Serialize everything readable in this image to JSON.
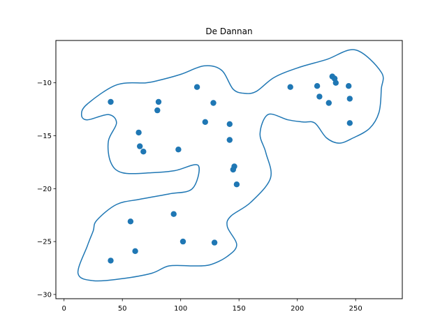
{
  "chart_data": {
    "type": "scatter",
    "title": "De Dannan",
    "xlabel": "",
    "ylabel": "",
    "xlim": [
      -7,
      290
    ],
    "ylim": [
      -30.4,
      -6.0
    ],
    "xticks": [
      0,
      50,
      100,
      150,
      200,
      250
    ],
    "yticks": [
      -30,
      -25,
      -20,
      -15,
      -10
    ],
    "grid": false,
    "legend": "none",
    "series": [
      {
        "points": [
          [
            40,
            -11.8
          ],
          [
            81,
            -11.8
          ],
          [
            80,
            -12.6
          ],
          [
            64,
            -14.7
          ],
          [
            65,
            -16.0
          ],
          [
            68,
            -16.5
          ],
          [
            98,
            -16.3
          ],
          [
            114,
            -10.4
          ],
          [
            128,
            -11.9
          ],
          [
            121,
            -13.7
          ],
          [
            142,
            -13.9
          ],
          [
            142,
            -15.4
          ],
          [
            146,
            -17.9
          ],
          [
            145,
            -18.2
          ],
          [
            148,
            -19.6
          ],
          [
            194,
            -10.4
          ],
          [
            217,
            -10.3
          ],
          [
            219,
            -11.3
          ],
          [
            227,
            -11.9
          ],
          [
            230,
            -9.4
          ],
          [
            232,
            -9.6
          ],
          [
            233,
            -10.0
          ],
          [
            244,
            -10.3
          ],
          [
            245,
            -11.5
          ],
          [
            245,
            -13.8
          ],
          [
            57,
            -23.1
          ],
          [
            94,
            -22.4
          ],
          [
            102,
            -25.0
          ],
          [
            129,
            -25.1
          ],
          [
            61,
            -25.9
          ],
          [
            40,
            -26.8
          ]
        ]
      }
    ],
    "outline": [
      [
        20,
        -12.0
      ],
      [
        45,
        -10.2
      ],
      [
        70,
        -10.0
      ],
      [
        80,
        -9.8
      ],
      [
        100,
        -9.2
      ],
      [
        120,
        -8.4
      ],
      [
        135,
        -8.8
      ],
      [
        145,
        -10.6
      ],
      [
        155,
        -11.0
      ],
      [
        165,
        -10.8
      ],
      [
        180,
        -9.5
      ],
      [
        200,
        -8.6
      ],
      [
        225,
        -7.8
      ],
      [
        250,
        -6.9
      ],
      [
        272,
        -9.0
      ],
      [
        272,
        -10.6
      ],
      [
        270,
        -12.8
      ],
      [
        262,
        -14.3
      ],
      [
        248,
        -15.2
      ],
      [
        236,
        -15.7
      ],
      [
        225,
        -15.2
      ],
      [
        215,
        -13.8
      ],
      [
        205,
        -13.7
      ],
      [
        192,
        -13.5
      ],
      [
        175,
        -13.0
      ],
      [
        168,
        -14.8
      ],
      [
        173,
        -16.6
      ],
      [
        177,
        -19.0
      ],
      [
        160,
        -21.3
      ],
      [
        143,
        -22.6
      ],
      [
        140,
        -23.6
      ],
      [
        148,
        -25.3
      ],
      [
        140,
        -26.4
      ],
      [
        125,
        -27.2
      ],
      [
        110,
        -27.3
      ],
      [
        90,
        -27.3
      ],
      [
        75,
        -28.0
      ],
      [
        50,
        -28.5
      ],
      [
        25,
        -28.7
      ],
      [
        12,
        -28.0
      ],
      [
        20,
        -25.4
      ],
      [
        25,
        -24.0
      ],
      [
        28,
        -23.0
      ],
      [
        45,
        -21.5
      ],
      [
        65,
        -21.0
      ],
      [
        90,
        -20.5
      ],
      [
        110,
        -20.0
      ],
      [
        115,
        -17.8
      ],
      [
        95,
        -18.3
      ],
      [
        75,
        -18.5
      ],
      [
        50,
        -18.5
      ],
      [
        40,
        -17.5
      ],
      [
        38,
        -15.5
      ],
      [
        45,
        -13.8
      ],
      [
        38,
        -13.0
      ],
      [
        20,
        -13.5
      ],
      [
        15,
        -13.0
      ]
    ],
    "colors": {
      "marker": "#1f77b4",
      "outline": "#1f77b4",
      "axes": "#000000",
      "background": "#ffffff"
    }
  }
}
